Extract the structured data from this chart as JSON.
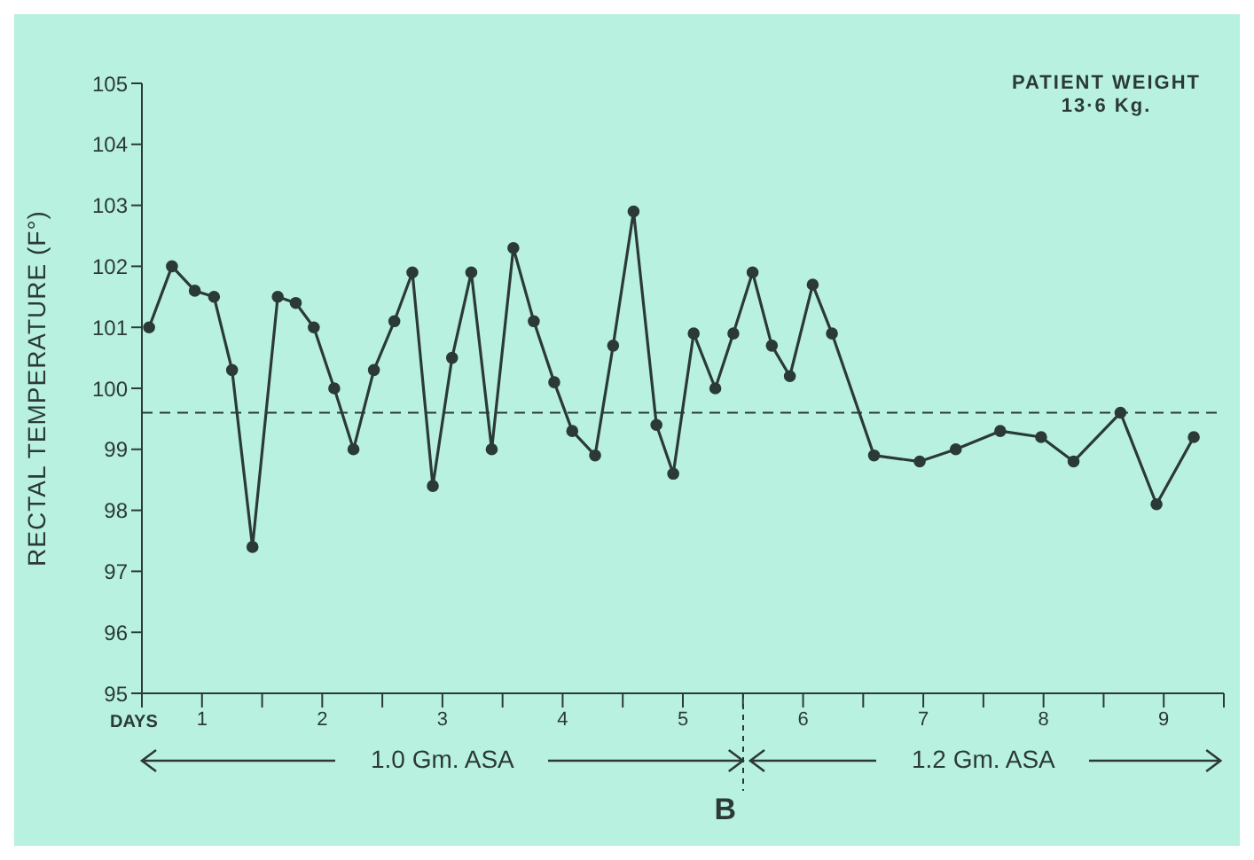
{
  "chart_data": {
    "type": "line",
    "ylabel": "RECTAL TEMPERATURE (F°)",
    "xlabel": "DAYS",
    "x": [
      0.06,
      0.25,
      0.44,
      0.6,
      0.75,
      0.92,
      1.13,
      1.28,
      1.43,
      1.6,
      1.76,
      1.93,
      2.1,
      2.25,
      2.42,
      2.58,
      2.74,
      2.91,
      3.09,
      3.26,
      3.43,
      3.58,
      3.77,
      3.92,
      4.09,
      4.28,
      4.42,
      4.59,
      4.77,
      4.92,
      5.08,
      5.24,
      5.39,
      5.58,
      5.74,
      6.09,
      6.47,
      6.77,
      7.14,
      7.48,
      7.75,
      8.14,
      8.44,
      8.75
    ],
    "series": [
      {
        "color": "#2b3a36",
        "values": [
          101.0,
          102.0,
          101.6,
          101.5,
          100.3,
          97.4,
          101.5,
          101.4,
          101.0,
          100.0,
          99.0,
          100.3,
          101.1,
          101.9,
          98.4,
          100.5,
          101.9,
          99.0,
          102.3,
          101.1,
          100.1,
          99.3,
          98.9,
          100.7,
          102.9,
          99.4,
          98.6,
          100.9,
          100.0,
          100.9,
          101.9,
          100.7,
          100.2,
          101.7,
          100.9,
          98.9,
          98.8,
          99.0,
          99.3,
          99.2,
          98.8,
          99.6,
          98.1,
          99.2
        ]
      }
    ],
    "xlim": [
      0,
      9
    ],
    "xticks": [
      {
        "value": 0,
        "label": null
      },
      {
        "value": 0.5,
        "label": "1"
      },
      {
        "value": 1,
        "label": null
      },
      {
        "value": 1.5,
        "label": "2"
      },
      {
        "value": 2,
        "label": null
      },
      {
        "value": 2.5,
        "label": "3"
      },
      {
        "value": 3,
        "label": null
      },
      {
        "value": 3.5,
        "label": "4"
      },
      {
        "value": 4,
        "label": null
      },
      {
        "value": 4.5,
        "label": "5"
      },
      {
        "value": 5,
        "label": null
      },
      {
        "value": 5.5,
        "label": "6"
      },
      {
        "value": 6,
        "label": null
      },
      {
        "value": 6.5,
        "label": "7"
      },
      {
        "value": 7,
        "label": null
      },
      {
        "value": 7.5,
        "label": "8"
      },
      {
        "value": 8,
        "label": null
      },
      {
        "value": 8.5,
        "label": "9"
      },
      {
        "value": 9,
        "label": null
      }
    ],
    "ylim": [
      95,
      105
    ],
    "yticks": [
      95,
      96,
      97,
      98,
      99,
      100,
      101,
      102,
      103,
      104,
      105
    ],
    "ref_lines": [
      {
        "axis": "y",
        "value": 99.6,
        "line_style": "dashed",
        "color": "#2b3a36"
      }
    ],
    "marker": "circle",
    "line_style": "solid",
    "annotations": [
      "PATIENT WEIGHT\n13·6 Kg.",
      "1.0 Gm. ASA",
      "1.2 Gm. ASA",
      "B"
    ]
  }
}
